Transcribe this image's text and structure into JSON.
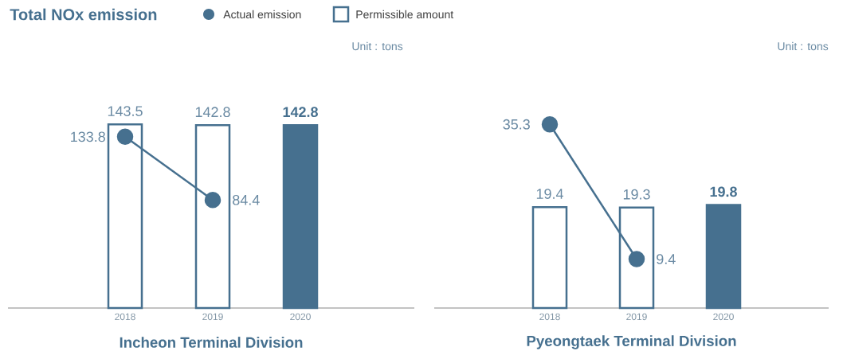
{
  "chart_data": [
    {
      "type": "bar",
      "title": "Total NOx emission",
      "xlabel": "Incheon Terminal Division",
      "categories": [
        "2018",
        "2019",
        "2020"
      ],
      "legend": "top",
      "annotations": [
        "Unit : tons"
      ],
      "series": [
        {
          "name": "Permissible amount",
          "type": "bar",
          "color": "#46708f",
          "colors": [
            "#ffffff",
            "#ffffff",
            "#46708f"
          ],
          "values": [
            143.5,
            142.8,
            142.8
          ],
          "value_labels": [
            "143.5",
            "142.8",
            "142.8"
          ]
        },
        {
          "name": "Actual emission",
          "type": "line",
          "marker": "circle",
          "color": "#46708f",
          "values": [
            133.8,
            84.4,
            null
          ],
          "value_labels": [
            "133.8",
            "84.4",
            null
          ]
        }
      ]
    },
    {
      "type": "bar",
      "xlabel": "Pyeongtaek Terminal Division",
      "categories": [
        "2018",
        "2019",
        "2020"
      ],
      "annotations": [
        "Unit : tons"
      ],
      "series": [
        {
          "type": "bar",
          "color": "#46708f",
          "colors": [
            "#ffffff",
            "#ffffff",
            "#46708f"
          ],
          "values": [
            19.4,
            19.3,
            19.8
          ],
          "value_labels": [
            "19.4",
            "19.3",
            "19.8"
          ]
        },
        {
          "type": "line",
          "marker": "circle",
          "color": "#46708f",
          "values": [
            35.3,
            9.4,
            null
          ],
          "value_labels": [
            "35.3",
            "9.4",
            null
          ]
        }
      ]
    }
  ]
}
